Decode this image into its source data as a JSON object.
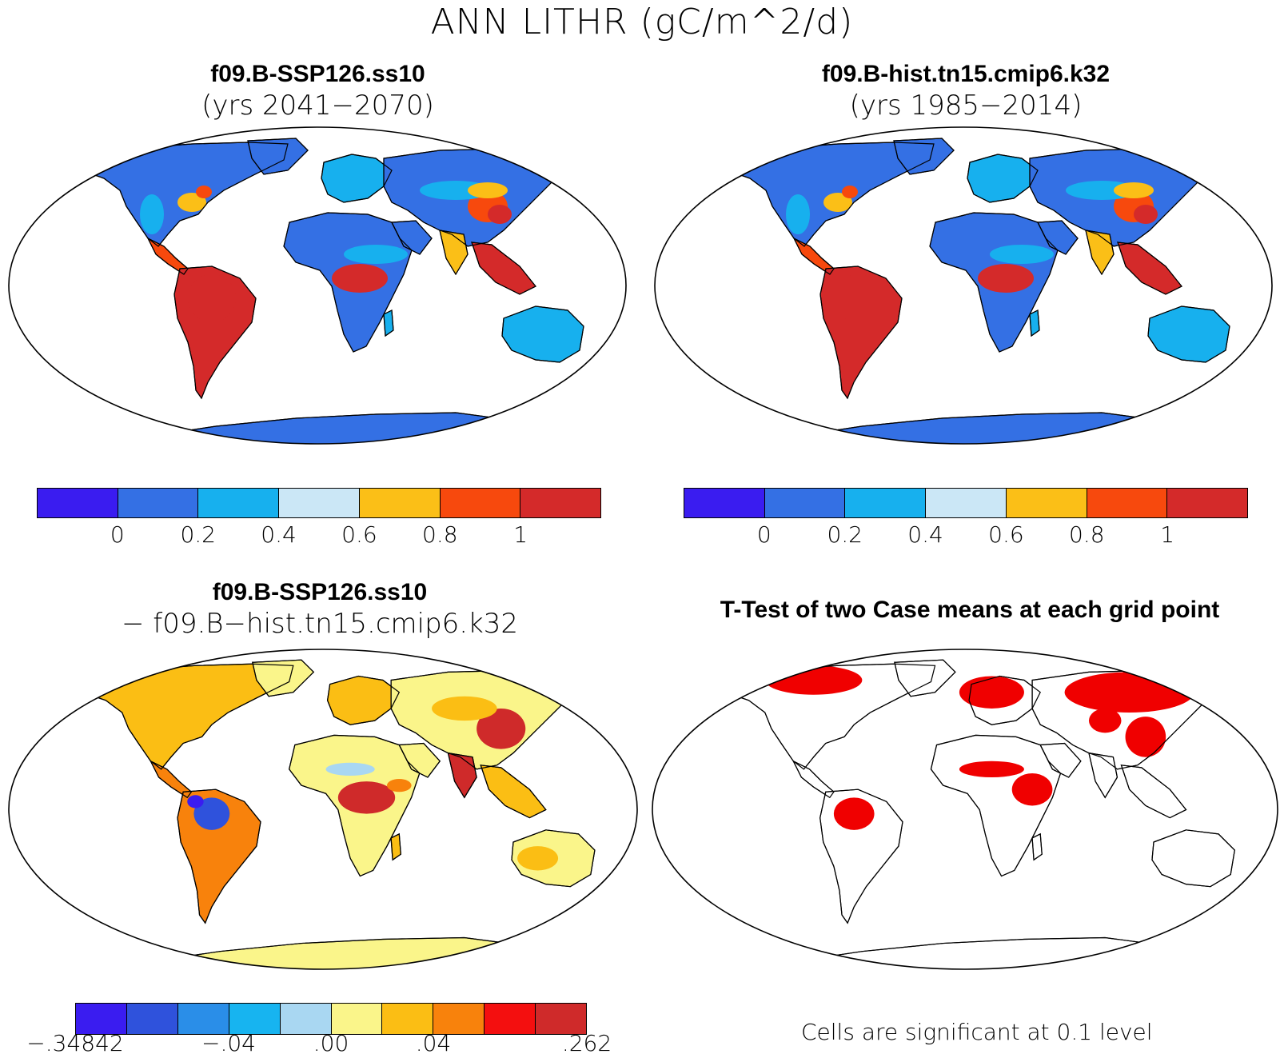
{
  "main_title": "ANN LITHR (gC/m^2/d)",
  "panels": {
    "top_left": {
      "title": "f09.B-SSP126.ss10",
      "subtitle": "(yrs 2041−2070)"
    },
    "top_right": {
      "title": "f09.B-hist.tn15.cmip6.k32",
      "subtitle": "(yrs 1985−2014)"
    },
    "bottom_left": {
      "title": "f09.B-SSP126.ss10",
      "subtitle": "− f09.B−hist.tn15.cmip6.k32"
    },
    "bottom_right": {
      "title": "T-Test of two Case means at each grid point",
      "note": "Cells are significant at 0.1 level"
    }
  },
  "colorbar_top": {
    "colors": [
      "#3a1cf0",
      "#3470e4",
      "#17b0ee",
      "#cbe7f6",
      "#fbbf17",
      "#f7490d",
      "#d42a2a"
    ],
    "labels": [
      "0",
      "0.2",
      "0.4",
      "0.6",
      "0.8",
      "1"
    ]
  },
  "colorbar_diff": {
    "colors": [
      "#3a1cf0",
      "#2f52dc",
      "#2a8ee8",
      "#17b4f0",
      "#a9d7f2",
      "#faf58a",
      "#fbbe14",
      "#f8820c",
      "#f40f0f",
      "#cf2a2a"
    ],
    "labels": [
      {
        "text": "−.34842",
        "at": 0
      },
      {
        "text": "−.04",
        "at": 3
      },
      {
        "text": ".00",
        "at": 5
      },
      {
        "text": ".04",
        "at": 7
      },
      {
        "text": ".262",
        "at": 10
      }
    ]
  },
  "ttest_color": "#f00000"
}
